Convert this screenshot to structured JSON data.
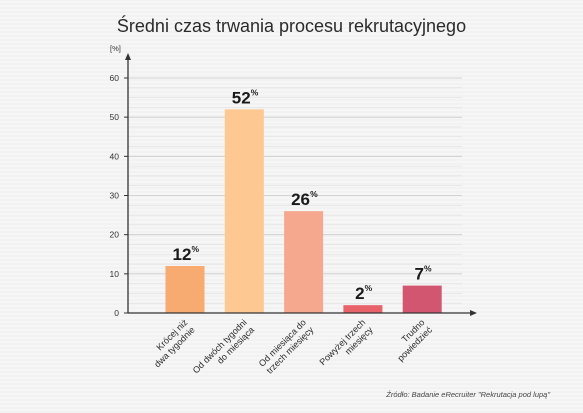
{
  "chart_data": {
    "type": "bar",
    "title": "Średni czas trwania procesu rekrutacyjnego",
    "unit_label": "[%]",
    "categories": [
      [
        "Krócej niż",
        "dwa tygodnie"
      ],
      [
        "Od dwóch tygodni",
        "do miesiąca"
      ],
      [
        "Od miesiąca do",
        "trzech miesięcy"
      ],
      [
        "Powyżej trzech",
        "miesięcy"
      ],
      [
        "Trudno",
        "powiedzieć"
      ]
    ],
    "values": [
      12,
      52,
      26,
      2,
      7
    ],
    "value_labels": [
      "12",
      "52",
      "26",
      "2",
      "7"
    ],
    "value_suffix": "%",
    "bar_colors": [
      "#f8ab70",
      "#fdc891",
      "#f5a88e",
      "#e8626a",
      "#d35670"
    ],
    "ylim": [
      0,
      60
    ],
    "yticks": [
      0,
      10,
      20,
      30,
      40,
      50,
      60
    ],
    "grid": true,
    "source": "Źródło: Badanie eRecruiter \"Rekrutacja pod lupą\""
  }
}
